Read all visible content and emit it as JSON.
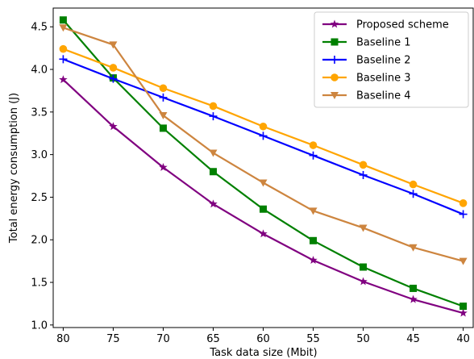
{
  "chart_data": {
    "type": "line",
    "title": "",
    "xlabel": "Task data size (Mbit)",
    "ylabel": "Total energy consumption (J)",
    "x": [
      80,
      75,
      70,
      65,
      60,
      55,
      50,
      45,
      40
    ],
    "x_reversed": true,
    "xlim": [
      81,
      39
    ],
    "ylim": [
      0.97,
      4.72
    ],
    "xticks": [
      "80",
      "75",
      "70",
      "65",
      "60",
      "55",
      "50",
      "45",
      "40"
    ],
    "yticks": [
      "1.0",
      "1.5",
      "2.0",
      "2.5",
      "3.0",
      "3.5",
      "4.0",
      "4.5"
    ],
    "ytick_values": [
      1.0,
      1.5,
      2.0,
      2.5,
      3.0,
      3.5,
      4.0,
      4.5
    ],
    "grid": false,
    "legend_position": "top-right",
    "series": [
      {
        "name": "Proposed scheme",
        "color": "#800080",
        "marker": "star",
        "values": [
          3.88,
          3.33,
          2.85,
          2.42,
          2.07,
          1.76,
          1.51,
          1.3,
          1.14
        ]
      },
      {
        "name": "Baseline 1",
        "color": "#008000",
        "marker": "square",
        "values": [
          4.58,
          3.9,
          3.31,
          2.8,
          2.36,
          1.99,
          1.68,
          1.43,
          1.22
        ]
      },
      {
        "name": "Baseline 2",
        "color": "#0000ff",
        "marker": "plus",
        "values": [
          4.12,
          3.89,
          3.67,
          3.45,
          3.22,
          2.99,
          2.76,
          2.54,
          2.3
        ]
      },
      {
        "name": "Baseline 3",
        "color": "#ffa500",
        "marker": "circle",
        "values": [
          4.24,
          4.02,
          3.78,
          3.57,
          3.33,
          3.11,
          2.88,
          2.65,
          2.43
        ]
      },
      {
        "name": "Baseline 4",
        "color": "#cd853f",
        "marker": "triangle-down",
        "values": [
          4.49,
          4.29,
          3.46,
          3.02,
          2.67,
          2.34,
          2.14,
          1.91,
          1.75
        ]
      }
    ]
  }
}
